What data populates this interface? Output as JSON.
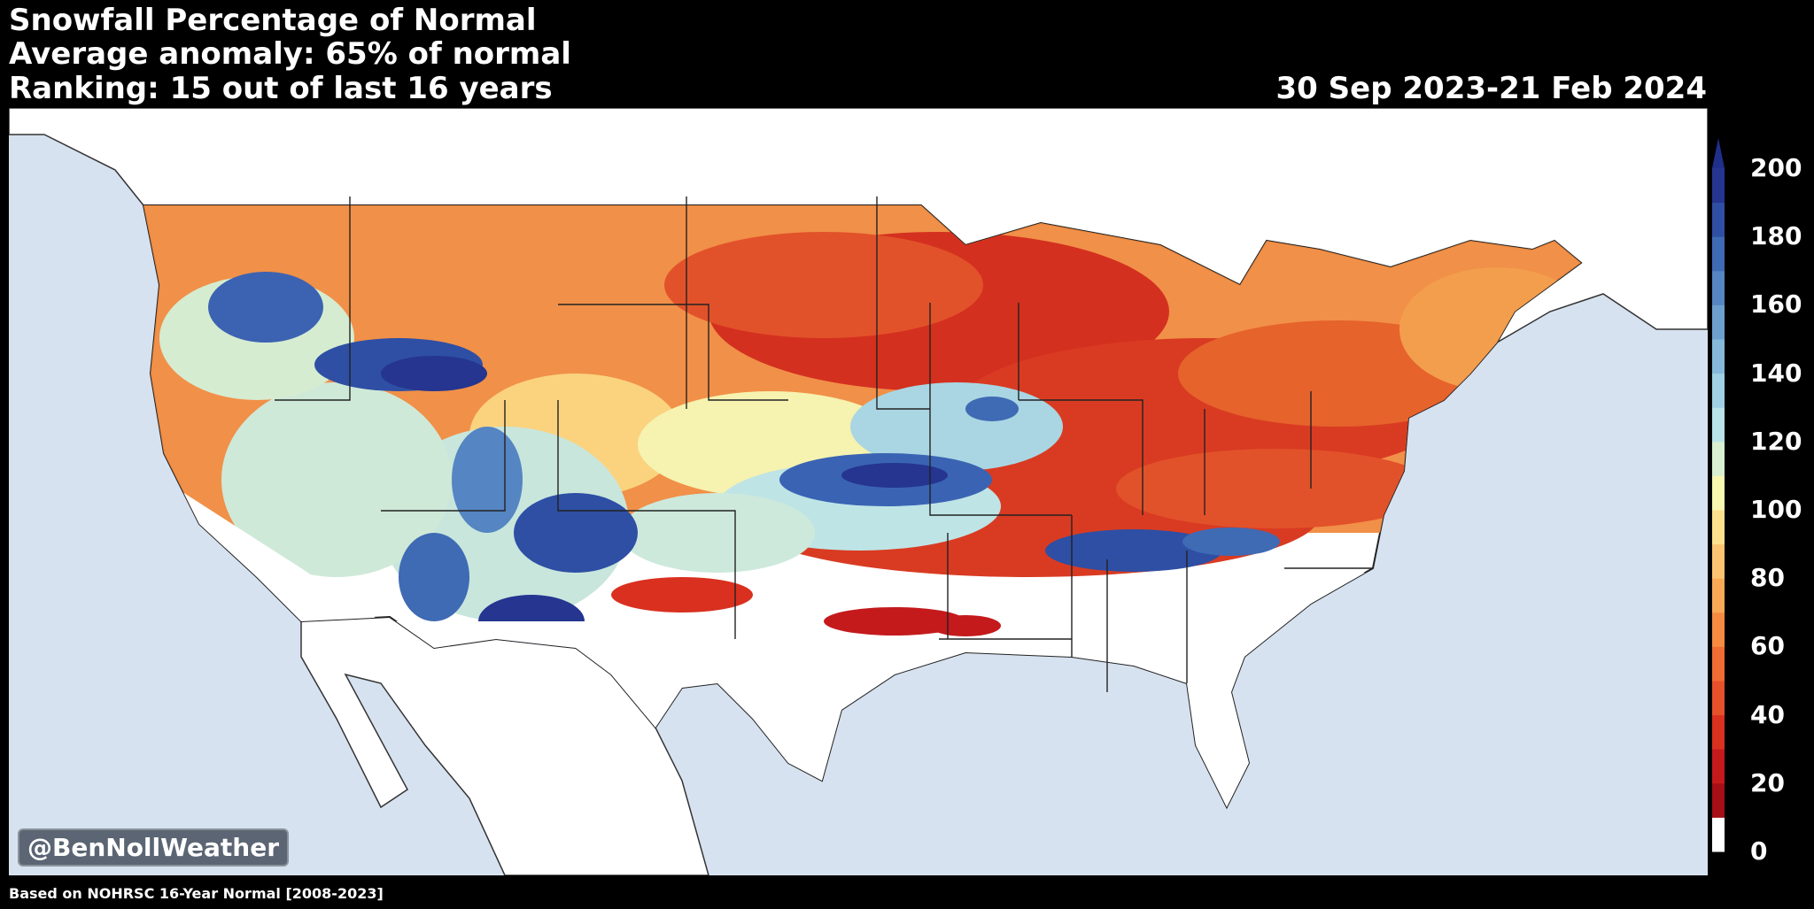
{
  "title": {
    "line1": "Snowfall Percentage of Normal",
    "line2": "Average anomaly: 65% of normal",
    "line3": "Ranking: 15 out of last 16 years",
    "date_range": "30 Sep 2023-21 Feb 2024"
  },
  "credit": "@BenNollWeather",
  "footnote": "Based on NOHRSC 16-Year Normal [2008-2023]",
  "map": {
    "region": "Contiguous United States",
    "variable": "Snowfall percentage of normal",
    "background_colors": {
      "ocean": "#d7e2f0",
      "land_outside": "#ffffff",
      "lakes": "#e3ebf5"
    }
  },
  "colorbar": {
    "min": 0,
    "max": 200,
    "extend": "max",
    "tick_labels": [
      "200",
      "180",
      "160",
      "140",
      "120",
      "100",
      "80",
      "60",
      "40",
      "20",
      "0"
    ],
    "colors": [
      "#ffffff",
      "#a50f15",
      "#c41a1c",
      "#d9301f",
      "#e6502a",
      "#ef6c32",
      "#f58a40",
      "#f9a955",
      "#fcc470",
      "#fde08e",
      "#f6f7b0",
      "#d8f0d0",
      "#b9e3e8",
      "#9fd0e3",
      "#86b8da",
      "#6d9fce",
      "#5585c2",
      "#3f6ab4",
      "#2e4fa4",
      "#253590"
    ],
    "arrow_color": "#1f2f8a"
  }
}
